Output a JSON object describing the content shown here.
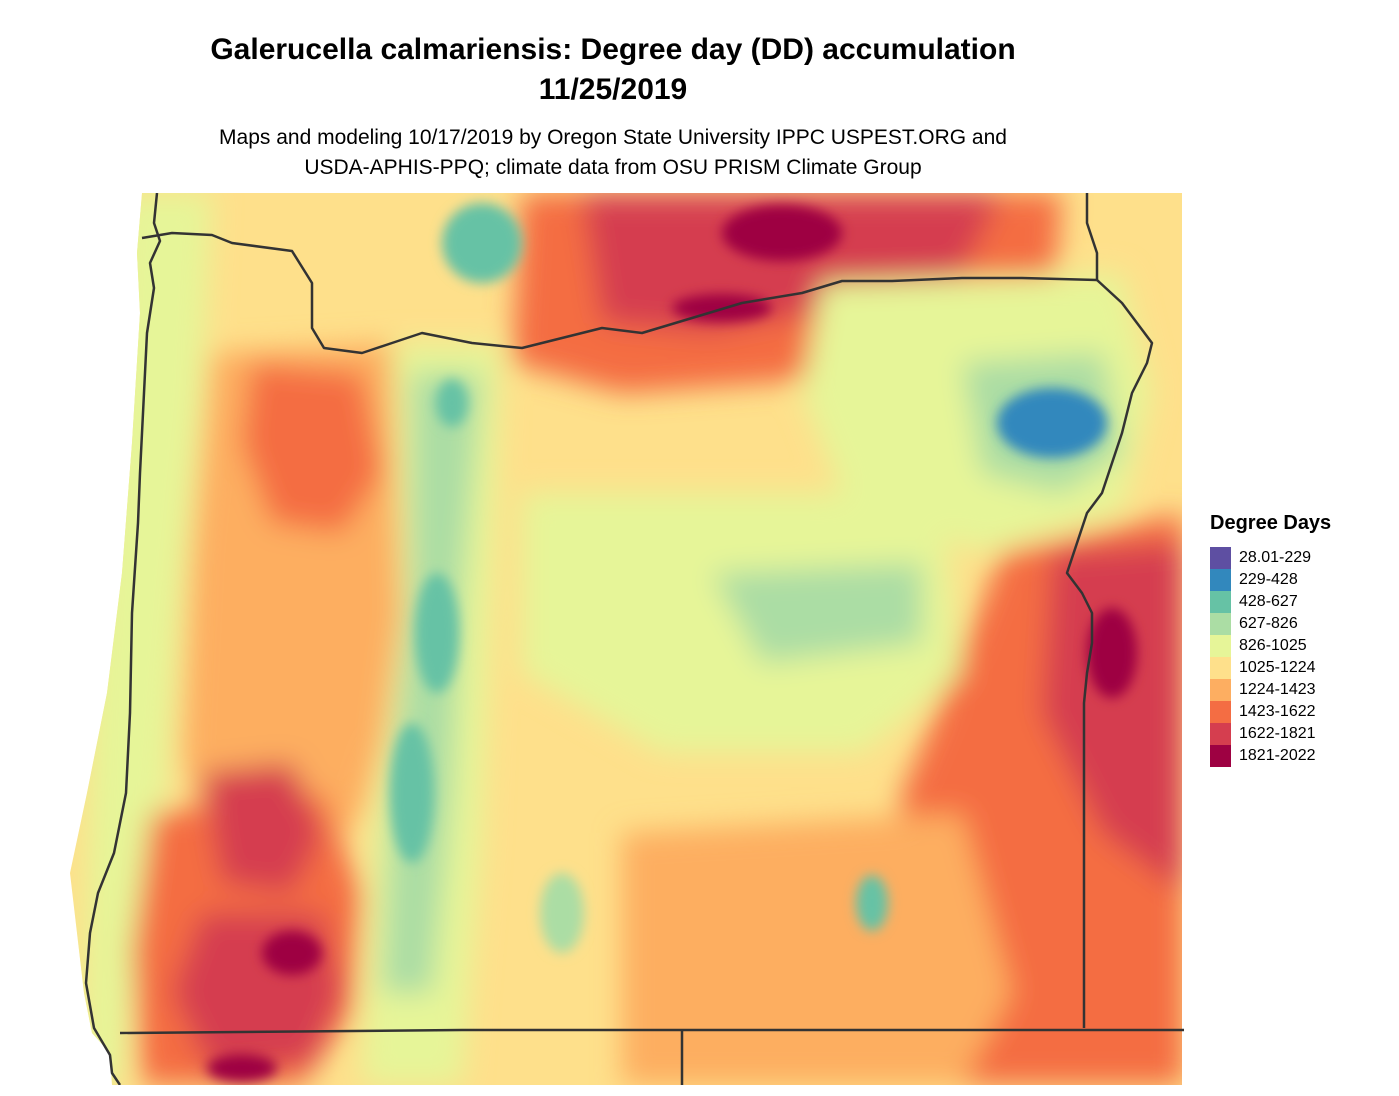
{
  "header": {
    "title_line1": "Galerucella calmariensis: Degree day (DD) accumulation",
    "title_line2": "11/25/2019",
    "subtitle_line1": "Maps and modeling 10/17/2019 by Oregon State University IPPC USPEST.ORG and",
    "subtitle_line2": "USDA-APHIS-PPQ; climate data from OSU PRISM Climate Group"
  },
  "legend": {
    "title": "Degree Days",
    "items": [
      {
        "label": "28.01-229",
        "color": "#5E4FA2"
      },
      {
        "label": "229-428",
        "color": "#3288BD"
      },
      {
        "label": "428-627",
        "color": "#66C2A5"
      },
      {
        "label": "627-826",
        "color": "#ABDDA4"
      },
      {
        "label": "826-1025",
        "color": "#E6F598"
      },
      {
        "label": "1025-1224",
        "color": "#FEE08B"
      },
      {
        "label": "1224-1423",
        "color": "#FDAE61"
      },
      {
        "label": "1423-1622",
        "color": "#F46D43"
      },
      {
        "label": "1622-1821",
        "color": "#D53E4F"
      },
      {
        "label": "1821-2022",
        "color": "#9E0142"
      }
    ]
  },
  "map": {
    "region": "Oregon",
    "border_color": "#333333"
  }
}
